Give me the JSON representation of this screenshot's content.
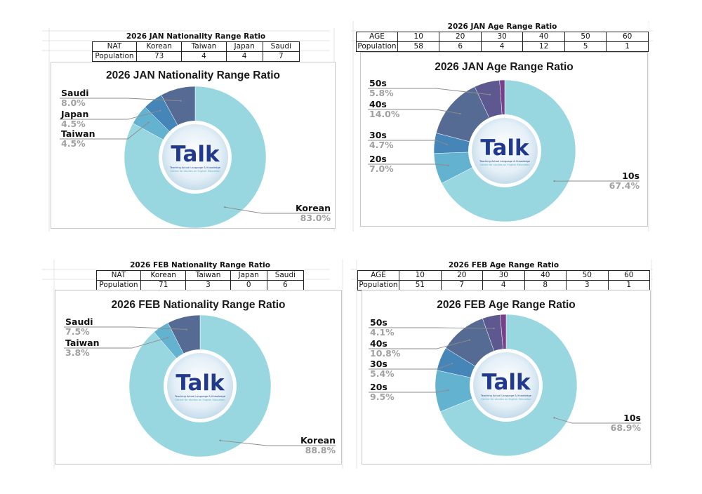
{
  "logo": {
    "word": "Talk",
    "line1": "Teaching Actual Language & Knowledge",
    "line2": "Centre for studies on English Education"
  },
  "colors": {
    "korean_10s": "#98d6e0",
    "taiwan_20s": "#62b2d0",
    "japan_30s": "#4685b8",
    "saudi_40s": "#566b94",
    "age_50s": "#5d5890",
    "age_60s": "#7a3f8a",
    "label_text": "#111111",
    "pct_text": "#a0a0a0",
    "logo_blue": "#223a8e",
    "logo_teal": "#4fb3c8"
  },
  "chart_data": [
    {
      "type": "pie",
      "id": "jan-nationality",
      "title": "2026 JAN Nationality Range Ratio",
      "table": {
        "caption": "2026 JAN Nationality Range Ratio",
        "header_label": "NAT",
        "row_label": "Population",
        "categories": [
          "Korean",
          "Taiwan",
          "Japan",
          "Saudi"
        ],
        "values": [
          73,
          4,
          4,
          7
        ]
      },
      "slices": [
        {
          "label": "Korean",
          "value": 73,
          "pct": "83.0%"
        },
        {
          "label": "Taiwan",
          "value": 4,
          "pct": "4.5%"
        },
        {
          "label": "Japan",
          "value": 4,
          "pct": "4.5%"
        },
        {
          "label": "Saudi",
          "value": 7,
          "pct": "8.0%"
        }
      ]
    },
    {
      "type": "pie",
      "id": "jan-age",
      "title": "2026 JAN Age Range Ratio",
      "table": {
        "caption": "2026 JAN Age Range Ratio",
        "header_label": "AGE",
        "row_label": "Population",
        "categories": [
          "10",
          "20",
          "30",
          "40",
          "50",
          "60"
        ],
        "values": [
          58,
          6,
          4,
          12,
          5,
          1
        ]
      },
      "slices": [
        {
          "label": "10s",
          "value": 58,
          "pct": "67.4%"
        },
        {
          "label": "20s",
          "value": 6,
          "pct": "7.0%"
        },
        {
          "label": "30s",
          "value": 4,
          "pct": "4.7%"
        },
        {
          "label": "40s",
          "value": 12,
          "pct": "14.0%"
        },
        {
          "label": "50s",
          "value": 5,
          "pct": "5.8%"
        },
        {
          "label": "60s",
          "value": 1,
          "pct": ""
        }
      ]
    },
    {
      "type": "pie",
      "id": "feb-nationality",
      "title": "2026 FEB Nationality Range Ratio",
      "table": {
        "caption": "2026 FEB Nationality Range Ratio",
        "header_label": "NAT",
        "row_label": "Population",
        "categories": [
          "Korean",
          "Taiwan",
          "Japan",
          "Saudi"
        ],
        "values": [
          71,
          3,
          0,
          6
        ]
      },
      "slices": [
        {
          "label": "Korean",
          "value": 71,
          "pct": "88.8%"
        },
        {
          "label": "Taiwan",
          "value": 3,
          "pct": "3.8%"
        },
        {
          "label": "Japan",
          "value": 0,
          "pct": ""
        },
        {
          "label": "Saudi",
          "value": 6,
          "pct": "7.5%"
        }
      ]
    },
    {
      "type": "pie",
      "id": "feb-age",
      "title": "2026 FEB Age Range Ratio",
      "table": {
        "caption": "2026 FEB Age Range Ratio",
        "header_label": "AGE",
        "row_label": "Population",
        "categories": [
          "10",
          "20",
          "30",
          "40",
          "50",
          "60"
        ],
        "values": [
          51,
          7,
          4,
          8,
          3,
          1
        ]
      },
      "slices": [
        {
          "label": "10s",
          "value": 51,
          "pct": "68.9%"
        },
        {
          "label": "20s",
          "value": 7,
          "pct": "9.5%"
        },
        {
          "label": "30s",
          "value": 4,
          "pct": "5.4%"
        },
        {
          "label": "40s",
          "value": 8,
          "pct": "10.8%"
        },
        {
          "label": "50s",
          "value": 3,
          "pct": "4.1%"
        },
        {
          "label": "60s",
          "value": 1,
          "pct": ""
        }
      ]
    }
  ]
}
